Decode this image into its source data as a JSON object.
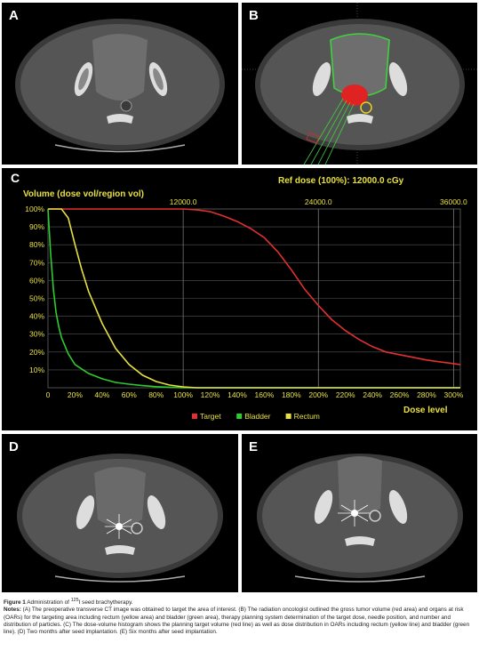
{
  "panels": {
    "a": {
      "label": "A"
    },
    "b": {
      "label": "B"
    },
    "c": {
      "label": "C"
    },
    "d": {
      "label": "D"
    },
    "e": {
      "label": "E"
    }
  },
  "chart_data": {
    "type": "line",
    "ylabel": "Volume (dose vol/region vol)",
    "xlabel": "Dose level",
    "ref_dose": "Ref dose (100%): 12000.0 cGy",
    "x_ticks": [
      "0",
      "20%",
      "40%",
      "60%",
      "80%",
      "100%",
      "120%",
      "140%",
      "160%",
      "180%",
      "200%",
      "220%",
      "240%",
      "260%",
      "280%",
      "300%"
    ],
    "y_ticks": [
      "10%",
      "20%",
      "30%",
      "40%",
      "50%",
      "60%",
      "70%",
      "80%",
      "90%",
      "100%"
    ],
    "top_ticks": [
      "12000.0",
      "24000.0",
      "36000.0"
    ],
    "xlim": [
      0,
      305
    ],
    "ylim": [
      0,
      100
    ],
    "grid": true,
    "legend_position": "bottom-right",
    "series": [
      {
        "name": "Target",
        "color": "#e23030",
        "x": [
          0,
          40,
          80,
          100,
          110,
          120,
          130,
          140,
          150,
          160,
          170,
          180,
          190,
          200,
          210,
          220,
          230,
          240,
          250,
          260,
          270,
          280,
          290,
          300,
          305
        ],
        "y": [
          100,
          100,
          100,
          100,
          99.5,
          98.5,
          96,
          93,
          89,
          84,
          76,
          66,
          55,
          46,
          38,
          32,
          27,
          23,
          20,
          18.5,
          17,
          15.5,
          14.5,
          13.5,
          13
        ]
      },
      {
        "name": "Bladder",
        "color": "#2ecc2e",
        "x": [
          0,
          2,
          4,
          6,
          8,
          10,
          15,
          20,
          30,
          40,
          50,
          60,
          70,
          80,
          90,
          100,
          305
        ],
        "y": [
          100,
          75,
          55,
          42,
          34,
          28,
          19,
          13,
          8,
          5,
          3,
          2,
          1.2,
          0.6,
          0.3,
          0,
          0
        ]
      },
      {
        "name": "Rectum",
        "color": "#e8e040",
        "x": [
          0,
          5,
          10,
          15,
          20,
          25,
          30,
          40,
          50,
          60,
          70,
          80,
          90,
          100,
          110,
          305
        ],
        "y": [
          100,
          100,
          100,
          95,
          80,
          66,
          54,
          36,
          22,
          13,
          7,
          3.5,
          1.5,
          0.5,
          0,
          0
        ]
      }
    ]
  },
  "caption": {
    "figure_label": "Figure 1",
    "title_prefix": "Administration of",
    "isotope_sup": "125",
    "title_suffix": "I seed brachytherapy.",
    "notes_label": "Notes:",
    "notes_text": "(A) The preoperative transverse CT image was obtained to target the area of interest. (B) The radiation oncologist outlined the gross tumor volume (red area) and organs at risk (OARs) for the targeting area including rectum (yellow area) and bladder (green area), therapy planning system determination of the target dose, needle position, and number and distribution of particles. (C) The dose-volume histogram shows the planning target volume (red line) as well as dose distribution in OARs including rectum (yellow line) and bladder (green line). (D) Two months after seed implantation. (E) Six months after seed implantation."
  }
}
